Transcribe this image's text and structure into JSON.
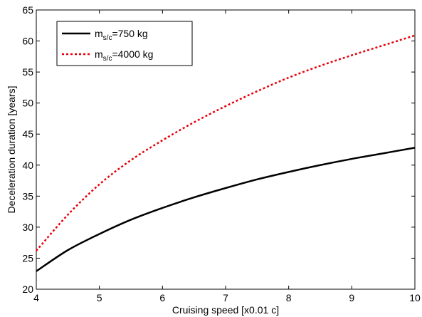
{
  "chart_data": {
    "type": "line",
    "title": "",
    "xlabel": "Cruising speed [x0.01 c]",
    "ylabel": "Deceleration duration [years]",
    "xlim": [
      4,
      10
    ],
    "ylim": [
      20,
      65
    ],
    "xticks": [
      4,
      5,
      6,
      7,
      8,
      9,
      10
    ],
    "yticks": [
      20,
      25,
      30,
      35,
      40,
      45,
      50,
      55,
      60,
      65
    ],
    "grid": false,
    "legend_position": "top-left",
    "series": [
      {
        "name": "m",
        "name_sub": "s/c",
        "name_suffix": "=750 kg",
        "color": "#000000",
        "line_style": "solid",
        "x": [
          4.0,
          4.5,
          5.0,
          5.5,
          6.0,
          6.5,
          7.0,
          7.5,
          8.0,
          8.5,
          9.0,
          9.5,
          10.0
        ],
        "y": [
          22.9,
          26.3,
          28.9,
          31.2,
          33.1,
          34.8,
          36.3,
          37.7,
          38.9,
          40.0,
          41.0,
          41.9,
          42.8
        ]
      },
      {
        "name": "m",
        "name_sub": "s/c",
        "name_suffix": "=4000 kg",
        "color": "#e8000b",
        "line_style": "dotted",
        "x": [
          4.0,
          4.5,
          5.0,
          5.5,
          6.0,
          6.5,
          7.0,
          7.5,
          8.0,
          8.5,
          9.0,
          9.5,
          10.0
        ],
        "y": [
          26.2,
          32.0,
          36.9,
          40.8,
          44.0,
          46.9,
          49.5,
          51.9,
          54.1,
          56.0,
          57.7,
          59.3,
          60.9
        ]
      }
    ]
  }
}
